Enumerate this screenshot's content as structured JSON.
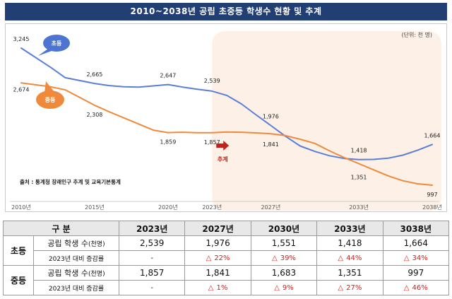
{
  "header": {
    "title": "2010~2038년 공립 초중등 학생수 현황 및 추계"
  },
  "chart_data": {
    "type": "line",
    "unit_label": "(단위: 천 명)",
    "x_tick_labels": [
      "2010년",
      "2015년",
      "2020년",
      "2023년",
      "2027년",
      "2033년",
      "2038년"
    ],
    "x_ticks": [
      2010,
      2015,
      2020,
      2023,
      2027,
      2033,
      2038
    ],
    "xlim": [
      2010,
      2038
    ],
    "ylim": [
      800,
      3400
    ],
    "projection_start": 2023,
    "projection_label": "추계",
    "source_note": "출처 : 통계청 장래인구 추계 및 교육기본통계",
    "series": [
      {
        "name": "초등",
        "color": "#5b7fd6",
        "points": [
          [
            2010,
            3245
          ],
          [
            2012,
            2930
          ],
          [
            2013,
            2760
          ],
          [
            2015,
            2665
          ],
          [
            2016,
            2630
          ],
          [
            2017,
            2610
          ],
          [
            2018,
            2605
          ],
          [
            2019,
            2625
          ],
          [
            2020,
            2647
          ],
          [
            2021,
            2605
          ],
          [
            2022,
            2570
          ],
          [
            2023,
            2539
          ],
          [
            2024,
            2470
          ],
          [
            2025,
            2330
          ],
          [
            2026,
            2150
          ],
          [
            2027,
            1976
          ],
          [
            2028,
            1800
          ],
          [
            2029,
            1640
          ],
          [
            2030,
            1551
          ],
          [
            2031,
            1480
          ],
          [
            2032,
            1435
          ],
          [
            2033,
            1418
          ],
          [
            2034,
            1420
          ],
          [
            2035,
            1440
          ],
          [
            2036,
            1490
          ],
          [
            2037,
            1570
          ],
          [
            2038,
            1664
          ]
        ],
        "labels": [
          [
            2010,
            "3,245"
          ],
          [
            2015,
            "2,665"
          ],
          [
            2020,
            "2,647"
          ],
          [
            2023,
            "2,539"
          ],
          [
            2027,
            "1,976"
          ],
          [
            2033,
            "1,418"
          ],
          [
            2038,
            "1,664"
          ]
        ]
      },
      {
        "name": "중등",
        "color": "#ef8a3c",
        "points": [
          [
            2010,
            2674
          ],
          [
            2012,
            2610
          ],
          [
            2013,
            2560
          ],
          [
            2015,
            2308
          ],
          [
            2016,
            2200
          ],
          [
            2017,
            2100
          ],
          [
            2018,
            2000
          ],
          [
            2019,
            1900
          ],
          [
            2020,
            1859
          ],
          [
            2021,
            1865
          ],
          [
            2022,
            1858
          ],
          [
            2023,
            1857
          ],
          [
            2024,
            1870
          ],
          [
            2025,
            1865
          ],
          [
            2026,
            1855
          ],
          [
            2027,
            1841
          ],
          [
            2028,
            1810
          ],
          [
            2029,
            1750
          ],
          [
            2030,
            1683
          ],
          [
            2031,
            1560
          ],
          [
            2032,
            1450
          ],
          [
            2033,
            1351
          ],
          [
            2034,
            1250
          ],
          [
            2035,
            1150
          ],
          [
            2036,
            1070
          ],
          [
            2037,
            1020
          ],
          [
            2038,
            997
          ]
        ],
        "labels": [
          [
            2010,
            "2,674"
          ],
          [
            2015,
            "2,308"
          ],
          [
            2020,
            "1,859"
          ],
          [
            2023,
            "1,857"
          ],
          [
            2027,
            "1,841"
          ],
          [
            2033,
            "1,351"
          ],
          [
            2038,
            "997"
          ]
        ]
      }
    ]
  },
  "table": {
    "header": [
      "구 분",
      "2023년",
      "2027년",
      "2030년",
      "2033년",
      "3038년"
    ],
    "groups": [
      {
        "name": "초등",
        "students_label": "공립 학생 수",
        "students_unit": "(천명)",
        "values": [
          "2,539",
          "1,976",
          "1,551",
          "1,418",
          "1,664"
        ],
        "change_label": "2023년 대비 증감률",
        "changes": [
          "-",
          "22%",
          "39%",
          "44%",
          "34%"
        ]
      },
      {
        "name": "중등",
        "students_label": "공립 학생 수",
        "students_unit": "(천명)",
        "values": [
          "1,857",
          "1,841",
          "1,683",
          "1,351",
          "997"
        ],
        "change_label": "2023년 대비 증감률",
        "changes": [
          "-",
          "1%",
          "9%",
          "27%",
          "46%"
        ]
      }
    ],
    "decrease_symbol": "△"
  }
}
